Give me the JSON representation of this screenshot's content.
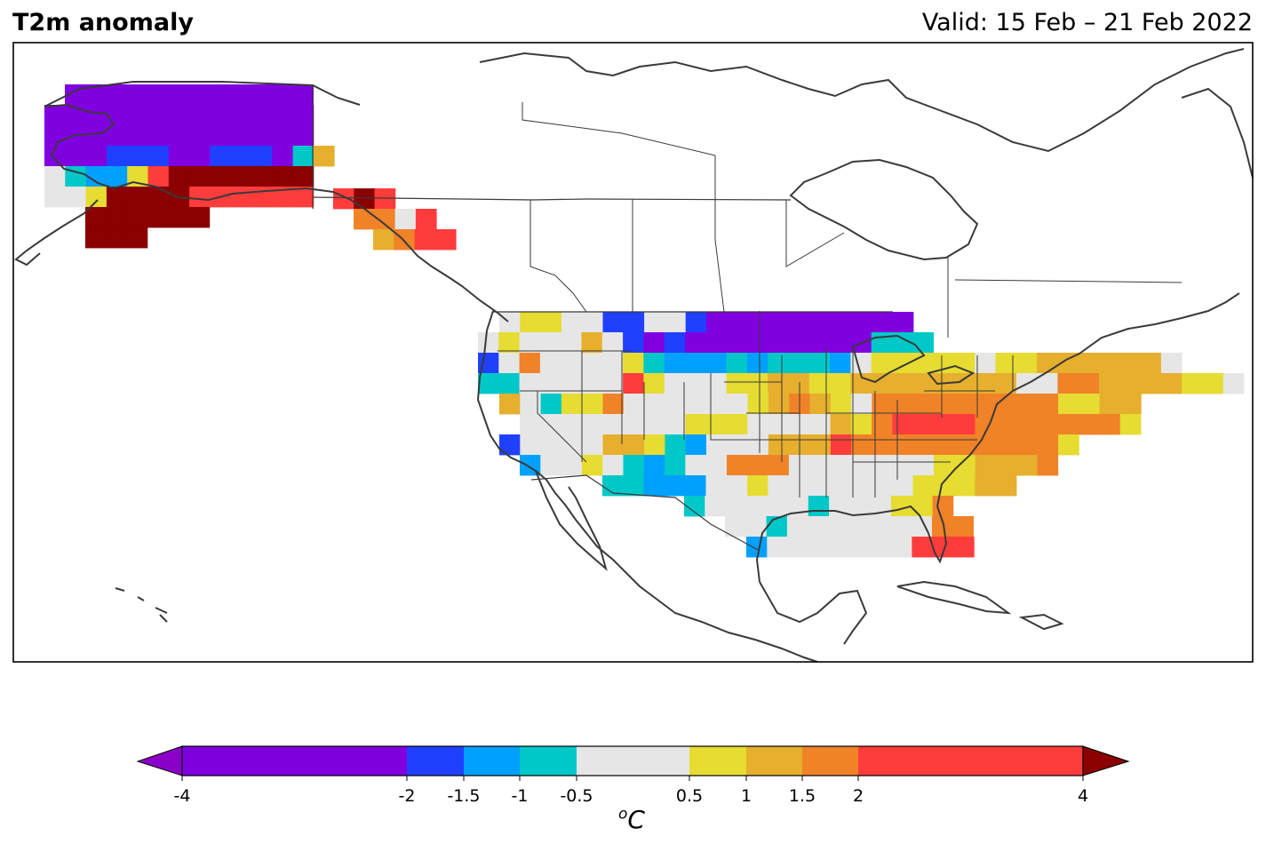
{
  "header": {
    "title": "T2m anomaly",
    "valid": "Valid: 15 Feb – 21 Feb 2022"
  },
  "colorbar": {
    "unit_base": "C",
    "unit_sup": "o",
    "under_color": "#8a00c8",
    "over_color": "#8b0000",
    "bins": [
      {
        "from": -4,
        "to": -2,
        "color": "#8000e0"
      },
      {
        "from": -2,
        "to": -1.5,
        "color": "#2040ff"
      },
      {
        "from": -1.5,
        "to": -1,
        "color": "#00a0ff"
      },
      {
        "from": -1,
        "to": -0.5,
        "color": "#00c8c8"
      },
      {
        "from": -0.5,
        "to": 0.5,
        "color": "#e6e6e6"
      },
      {
        "from": 0.5,
        "to": 1,
        "color": "#e6dc32"
      },
      {
        "from": 1,
        "to": 1.5,
        "color": "#e6af2d"
      },
      {
        "from": 1.5,
        "to": 2,
        "color": "#f08228"
      },
      {
        "from": 2,
        "to": 4,
        "color": "#ff3c3c"
      }
    ],
    "ticks": [
      "-4",
      "-2",
      "-1.5",
      "-1",
      "-0.5",
      "0.5",
      "1",
      "1.5",
      "2",
      "4"
    ]
  },
  "legend_codes": {
    "P": "#8000e0",
    "B": "#2040ff",
    "L": "#00a0ff",
    "C": "#00c8c8",
    "G": "#e6e6e6",
    "Y": "#e6dc32",
    "O": "#e6af2d",
    "A": "#f08228",
    "R": "#ff3c3c",
    "D": "#8b0000"
  }
}
